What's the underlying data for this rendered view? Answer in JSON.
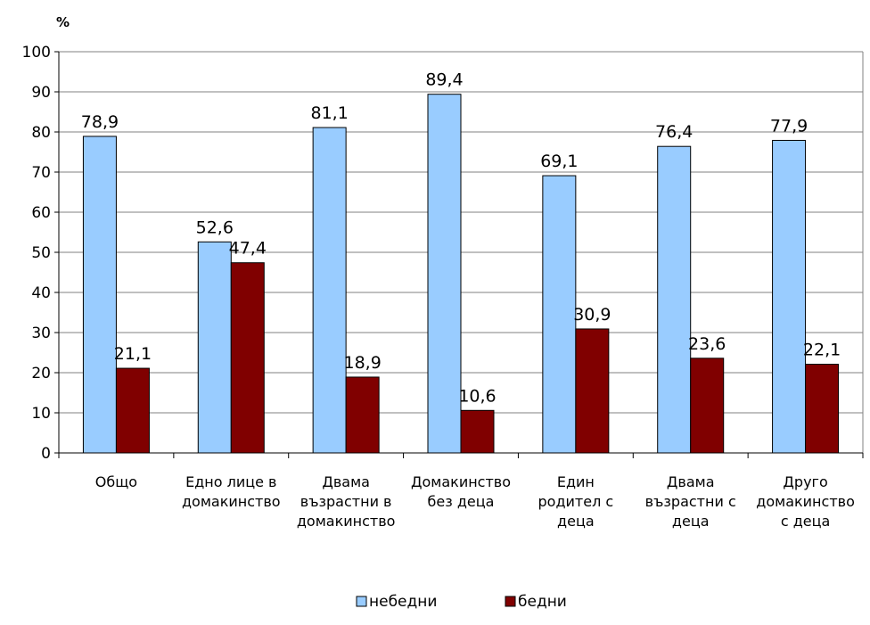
{
  "chart_data": {
    "type": "bar",
    "unit_label": "%",
    "ylim": [
      0,
      100
    ],
    "yticks": [
      "0",
      "10",
      "20",
      "30",
      "40",
      "50",
      "60",
      "70",
      "80",
      "90",
      "100"
    ],
    "grid": true,
    "legend_position": "bottom",
    "categories": [
      [
        "Общо"
      ],
      [
        "Едно лице в",
        "домакинство"
      ],
      [
        "Двама",
        "възрастни в",
        "домакинство"
      ],
      [
        "Домакинство",
        "без деца"
      ],
      [
        "Един",
        "родител с",
        "деца"
      ],
      [
        "Двама",
        "възрастни с",
        "деца"
      ],
      [
        "Друго",
        "домакинство",
        "с деца"
      ]
    ],
    "series": [
      {
        "name": "небедни",
        "color": "#99CCFF",
        "values": [
          78.9,
          52.6,
          81.1,
          89.4,
          69.1,
          76.4,
          77.9
        ],
        "labels": [
          "78,9",
          "52,6",
          "81,1",
          "89,4",
          "69,1",
          "76,4",
          "77,9"
        ]
      },
      {
        "name": "бедни",
        "color": "#800000",
        "values": [
          21.1,
          47.4,
          18.9,
          10.6,
          30.9,
          23.6,
          22.1
        ],
        "labels": [
          "21,1",
          "47,4",
          "18,9",
          "10,6",
          "30,9",
          "23,6",
          "22,1"
        ]
      }
    ]
  }
}
